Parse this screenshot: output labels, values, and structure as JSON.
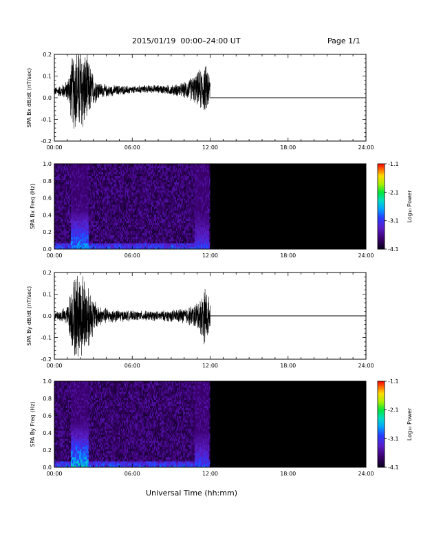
{
  "header": {
    "title": "2015/01/19  00:00–24:00 UT",
    "page": "Page 1/1"
  },
  "footer": {
    "xlabel": "Universal Time (hh:mm)"
  },
  "chart_data": [
    {
      "type": "line",
      "panel": "SPA Bx dB/dt",
      "ylabel": "SPA Bx dB/dt (nT/sec)",
      "xlim": [
        0,
        24
      ],
      "ylim": [
        -0.2,
        0.2
      ],
      "xticks": [
        "00:00",
        "06:00",
        "12:00",
        "18:00",
        "24:00"
      ],
      "yticks": [
        "-0.2",
        "-0.1",
        "0.0",
        "0.1",
        "0.2"
      ],
      "data_end_hour": 12.0,
      "flat_value_after_end": 0.0,
      "envelope": {
        "x": [
          0.0,
          0.5,
          1.0,
          1.4,
          1.6,
          1.9,
          2.2,
          2.6,
          3.0,
          3.5,
          4.0,
          5.0,
          6.0,
          7.0,
          8.0,
          9.0,
          10.0,
          10.5,
          11.0,
          11.3,
          11.6,
          11.8,
          12.0
        ],
        "center": [
          0.03,
          0.03,
          0.035,
          0.035,
          0.035,
          0.035,
          0.035,
          0.035,
          0.035,
          0.035,
          0.03,
          0.035,
          0.035,
          0.04,
          0.04,
          0.035,
          0.035,
          0.04,
          0.04,
          0.04,
          0.04,
          0.04,
          0.04
        ],
        "amplitude": [
          0.02,
          0.03,
          0.05,
          0.18,
          0.22,
          0.22,
          0.22,
          0.16,
          0.08,
          0.04,
          0.03,
          0.025,
          0.02,
          0.02,
          0.02,
          0.025,
          0.04,
          0.06,
          0.08,
          0.11,
          0.12,
          0.12,
          0.08
        ]
      }
    },
    {
      "type": "heatmap",
      "panel": "SPA Bx Freq",
      "ylabel": "SPA Bx Freq (Hz)",
      "xlim": [
        0,
        24
      ],
      "ylim": [
        0.0,
        1.0
      ],
      "xticks": [
        "00:00",
        "06:00",
        "12:00",
        "18:00",
        "24:00"
      ],
      "yticks": [
        "0.0",
        "0.2",
        "0.4",
        "0.6",
        "0.8",
        "1.0"
      ],
      "data_end_hour": 12.0,
      "no_data_fill": "#000000",
      "colorbar": {
        "label": "Log₁₀ Power",
        "range": [
          -4.1,
          -1.1
        ],
        "ticks": [
          "-1.1",
          "-2.1",
          "-3.1",
          "-4.1"
        ]
      },
      "background_power": -3.75,
      "low_freq_band_power": -3.0,
      "bursts": [
        {
          "t_start": 1.3,
          "t_end": 2.6,
          "f_max": 0.5,
          "peak_power": -2.5
        },
        {
          "t_start": 10.8,
          "t_end": 11.9,
          "f_max": 0.45,
          "peak_power": -3.0
        }
      ]
    },
    {
      "type": "line",
      "panel": "SPA By dB/dt",
      "ylabel": "SPA By dB/dt (nT/sec)",
      "xlim": [
        0,
        24
      ],
      "ylim": [
        -0.2,
        0.2
      ],
      "xticks": [
        "00:00",
        "06:00",
        "12:00",
        "18:00",
        "24:00"
      ],
      "yticks": [
        "-0.2",
        "-0.1",
        "0.0",
        "0.1",
        "0.2"
      ],
      "data_end_hour": 12.0,
      "flat_value_after_end": 0.0,
      "envelope": {
        "x": [
          0.0,
          0.5,
          1.0,
          1.3,
          1.6,
          1.9,
          2.2,
          2.6,
          3.0,
          3.5,
          4.0,
          5.0,
          6.0,
          7.0,
          8.0,
          9.0,
          10.0,
          10.5,
          11.0,
          11.3,
          11.6,
          11.8,
          12.0
        ],
        "center": [
          0.0,
          0.0,
          0.0,
          0.0,
          0.0,
          0.0,
          0.0,
          0.0,
          0.0,
          0.0,
          0.0,
          0.0,
          0.0,
          0.0,
          0.0,
          0.0,
          0.0,
          0.0,
          0.0,
          0.0,
          0.0,
          0.0,
          0.0
        ],
        "amplitude": [
          0.02,
          0.03,
          0.05,
          0.15,
          0.22,
          0.22,
          0.22,
          0.18,
          0.09,
          0.05,
          0.04,
          0.03,
          0.025,
          0.025,
          0.025,
          0.03,
          0.04,
          0.05,
          0.07,
          0.1,
          0.15,
          0.13,
          0.05
        ]
      }
    },
    {
      "type": "heatmap",
      "panel": "SPA By Freq",
      "ylabel": "SPA By Freq (Hz)",
      "xlim": [
        0,
        24
      ],
      "ylim": [
        0.0,
        1.0
      ],
      "xticks": [
        "00:00",
        "06:00",
        "12:00",
        "18:00",
        "24:00"
      ],
      "yticks": [
        "0.0",
        "0.2",
        "0.4",
        "0.6",
        "0.8",
        "1.0"
      ],
      "data_end_hour": 12.0,
      "no_data_fill": "#000000",
      "colorbar": {
        "label": "Log₁₀ Power",
        "range": [
          -4.1,
          -1.1
        ],
        "ticks": [
          "-1.1",
          "-2.1",
          "-3.1",
          "-4.1"
        ]
      },
      "background_power": -3.75,
      "low_freq_band_power": -3.0,
      "bursts": [
        {
          "t_start": 1.3,
          "t_end": 2.6,
          "f_max": 0.55,
          "peak_power": -2.3
        },
        {
          "t_start": 10.8,
          "t_end": 11.9,
          "f_max": 0.45,
          "peak_power": -2.9
        }
      ]
    }
  ]
}
